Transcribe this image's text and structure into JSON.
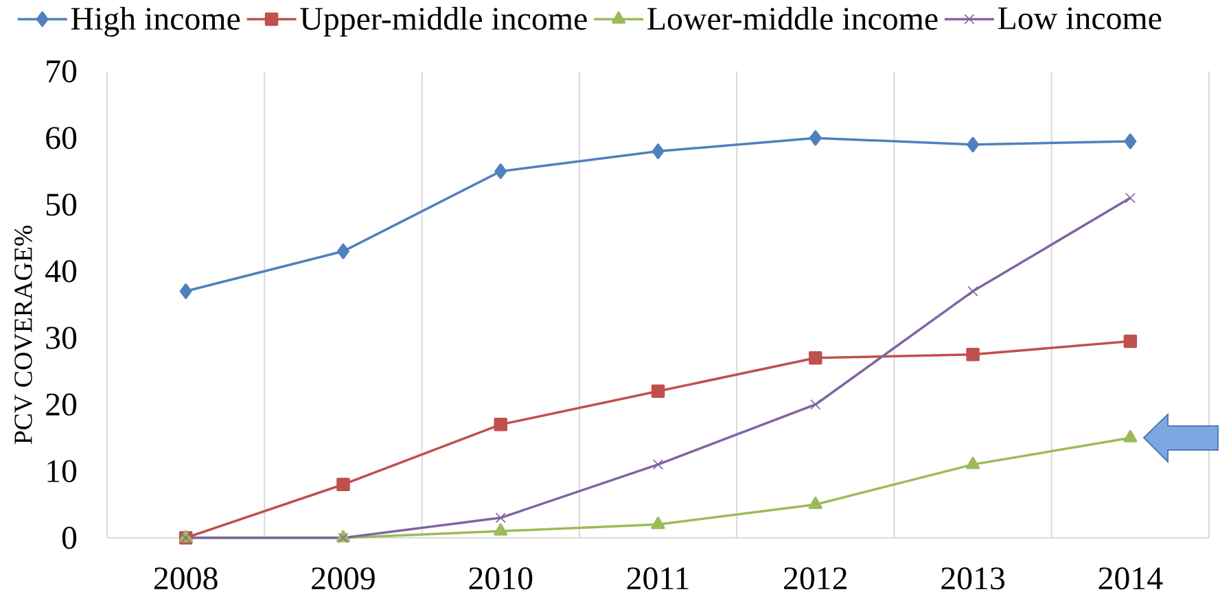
{
  "chart_data": {
    "type": "line",
    "ylabel": "PCV COVERAGE%",
    "categories": [
      "2008",
      "2009",
      "2010",
      "2011",
      "2012",
      "2013",
      "2014"
    ],
    "ylim": [
      0,
      70
    ],
    "yticks": [
      0,
      10,
      20,
      30,
      40,
      50,
      60,
      70
    ],
    "grid": "x",
    "legend": "top",
    "line_style": "solid",
    "series": [
      {
        "name": "High income",
        "color": "#4f81bd",
        "marker": "diamond",
        "values": [
          37,
          43,
          55,
          58,
          60,
          59,
          59.5
        ]
      },
      {
        "name": "Upper-middle income",
        "color": "#c0504d",
        "marker": "square",
        "values": [
          0,
          8,
          17,
          22,
          27,
          27.5,
          29.5
        ]
      },
      {
        "name": "Lower-middle income",
        "color": "#9bbb59",
        "marker": "triangle",
        "values": [
          0,
          0,
          1,
          2,
          5,
          11,
          15
        ]
      },
      {
        "name": "Low income",
        "color": "#8064a2",
        "marker": "cross",
        "values": [
          0,
          0,
          3,
          11,
          20,
          37,
          51
        ]
      }
    ]
  }
}
